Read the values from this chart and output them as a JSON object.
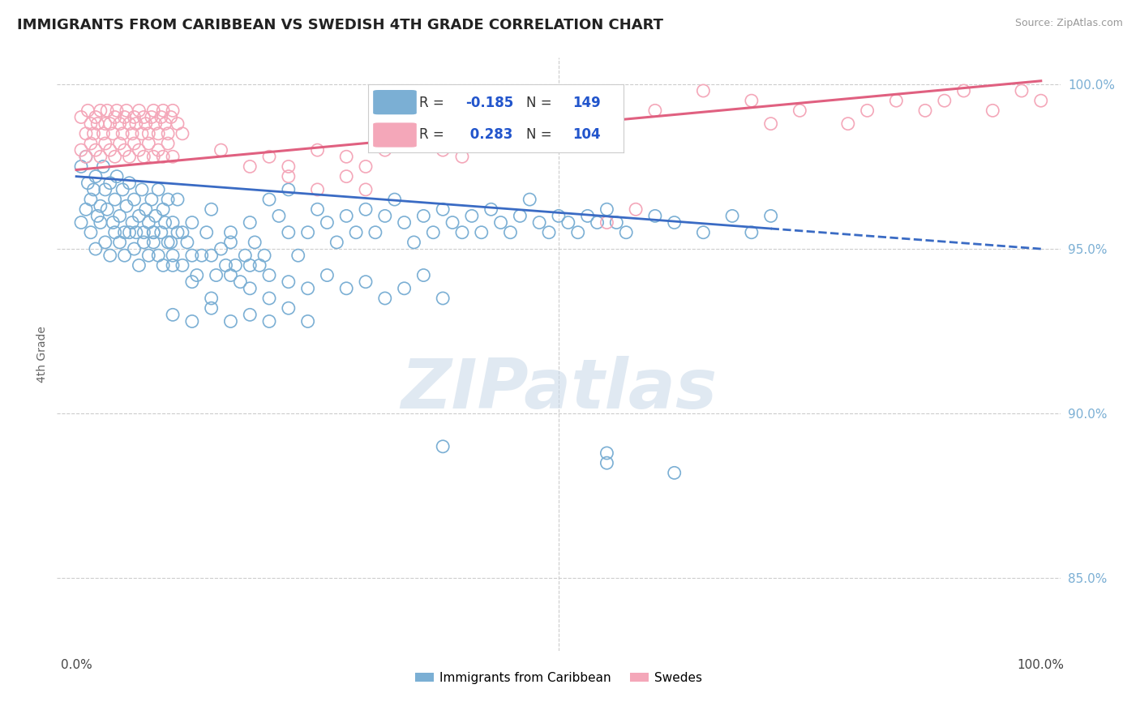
{
  "title": "IMMIGRANTS FROM CARIBBEAN VS SWEDISH 4TH GRADE CORRELATION CHART",
  "source": "Source: ZipAtlas.com",
  "ylabel": "4th Grade",
  "xlim": [
    -0.02,
    1.02
  ],
  "ylim": [
    0.828,
    1.008
  ],
  "x_tick_labels": [
    "0.0%",
    "100.0%"
  ],
  "x_tick_values": [
    0.0,
    1.0
  ],
  "y_tick_labels": [
    "85.0%",
    "90.0%",
    "95.0%",
    "100.0%"
  ],
  "y_tick_values": [
    0.85,
    0.9,
    0.95,
    1.0
  ],
  "color_blue": "#7bafd4",
  "color_pink": "#f4a7b9",
  "color_blue_line": "#3a6bc4",
  "color_pink_line": "#e06080",
  "trendline_blue": [
    [
      0.0,
      0.972
    ],
    [
      1.0,
      0.95
    ]
  ],
  "trendline_blue_solid_end": 0.72,
  "trendline_pink": [
    [
      0.0,
      0.974
    ],
    [
      1.0,
      1.001
    ]
  ],
  "legend_label_1": "Immigrants from Caribbean",
  "legend_label_2": "Swedes",
  "blue_scatter": [
    [
      0.005,
      0.975
    ],
    [
      0.01,
      0.978
    ],
    [
      0.012,
      0.97
    ],
    [
      0.015,
      0.965
    ],
    [
      0.018,
      0.968
    ],
    [
      0.02,
      0.972
    ],
    [
      0.022,
      0.96
    ],
    [
      0.025,
      0.963
    ],
    [
      0.028,
      0.975
    ],
    [
      0.03,
      0.968
    ],
    [
      0.032,
      0.962
    ],
    [
      0.035,
      0.97
    ],
    [
      0.038,
      0.958
    ],
    [
      0.04,
      0.965
    ],
    [
      0.042,
      0.972
    ],
    [
      0.045,
      0.96
    ],
    [
      0.048,
      0.968
    ],
    [
      0.05,
      0.955
    ],
    [
      0.052,
      0.963
    ],
    [
      0.055,
      0.97
    ],
    [
      0.058,
      0.958
    ],
    [
      0.06,
      0.965
    ],
    [
      0.062,
      0.955
    ],
    [
      0.065,
      0.96
    ],
    [
      0.068,
      0.968
    ],
    [
      0.07,
      0.955
    ],
    [
      0.072,
      0.962
    ],
    [
      0.075,
      0.958
    ],
    [
      0.078,
      0.965
    ],
    [
      0.08,
      0.955
    ],
    [
      0.082,
      0.96
    ],
    [
      0.085,
      0.968
    ],
    [
      0.088,
      0.955
    ],
    [
      0.09,
      0.962
    ],
    [
      0.092,
      0.958
    ],
    [
      0.095,
      0.965
    ],
    [
      0.098,
      0.952
    ],
    [
      0.1,
      0.958
    ],
    [
      0.105,
      0.965
    ],
    [
      0.11,
      0.955
    ],
    [
      0.005,
      0.958
    ],
    [
      0.01,
      0.962
    ],
    [
      0.015,
      0.955
    ],
    [
      0.02,
      0.95
    ],
    [
      0.025,
      0.958
    ],
    [
      0.03,
      0.952
    ],
    [
      0.035,
      0.948
    ],
    [
      0.04,
      0.955
    ],
    [
      0.045,
      0.952
    ],
    [
      0.05,
      0.948
    ],
    [
      0.055,
      0.955
    ],
    [
      0.06,
      0.95
    ],
    [
      0.065,
      0.945
    ],
    [
      0.07,
      0.952
    ],
    [
      0.075,
      0.948
    ],
    [
      0.08,
      0.955
    ],
    [
      0.085,
      0.948
    ],
    [
      0.09,
      0.945
    ],
    [
      0.095,
      0.952
    ],
    [
      0.1,
      0.948
    ],
    [
      0.105,
      0.955
    ],
    [
      0.11,
      0.945
    ],
    [
      0.115,
      0.952
    ],
    [
      0.12,
      0.948
    ],
    [
      0.125,
      0.942
    ],
    [
      0.13,
      0.948
    ],
    [
      0.135,
      0.955
    ],
    [
      0.14,
      0.948
    ],
    [
      0.145,
      0.942
    ],
    [
      0.15,
      0.95
    ],
    [
      0.155,
      0.945
    ],
    [
      0.16,
      0.952
    ],
    [
      0.165,
      0.945
    ],
    [
      0.17,
      0.94
    ],
    [
      0.175,
      0.948
    ],
    [
      0.18,
      0.945
    ],
    [
      0.185,
      0.952
    ],
    [
      0.19,
      0.945
    ],
    [
      0.195,
      0.948
    ],
    [
      0.2,
      0.942
    ],
    [
      0.21,
      0.96
    ],
    [
      0.22,
      0.955
    ],
    [
      0.23,
      0.948
    ],
    [
      0.24,
      0.955
    ],
    [
      0.25,
      0.962
    ],
    [
      0.26,
      0.958
    ],
    [
      0.27,
      0.952
    ],
    [
      0.28,
      0.96
    ],
    [
      0.29,
      0.955
    ],
    [
      0.3,
      0.962
    ],
    [
      0.31,
      0.955
    ],
    [
      0.32,
      0.96
    ],
    [
      0.33,
      0.965
    ],
    [
      0.34,
      0.958
    ],
    [
      0.35,
      0.952
    ],
    [
      0.36,
      0.96
    ],
    [
      0.37,
      0.955
    ],
    [
      0.38,
      0.962
    ],
    [
      0.39,
      0.958
    ],
    [
      0.4,
      0.955
    ],
    [
      0.41,
      0.96
    ],
    [
      0.42,
      0.955
    ],
    [
      0.43,
      0.962
    ],
    [
      0.44,
      0.958
    ],
    [
      0.45,
      0.955
    ],
    [
      0.46,
      0.96
    ],
    [
      0.47,
      0.965
    ],
    [
      0.48,
      0.958
    ],
    [
      0.49,
      0.955
    ],
    [
      0.5,
      0.96
    ],
    [
      0.51,
      0.958
    ],
    [
      0.52,
      0.955
    ],
    [
      0.53,
      0.96
    ],
    [
      0.54,
      0.958
    ],
    [
      0.55,
      0.962
    ],
    [
      0.56,
      0.958
    ],
    [
      0.57,
      0.955
    ],
    [
      0.6,
      0.96
    ],
    [
      0.62,
      0.958
    ],
    [
      0.65,
      0.955
    ],
    [
      0.68,
      0.96
    ],
    [
      0.7,
      0.955
    ],
    [
      0.72,
      0.96
    ],
    [
      0.12,
      0.94
    ],
    [
      0.14,
      0.935
    ],
    [
      0.16,
      0.942
    ],
    [
      0.18,
      0.938
    ],
    [
      0.2,
      0.935
    ],
    [
      0.22,
      0.94
    ],
    [
      0.24,
      0.938
    ],
    [
      0.26,
      0.942
    ],
    [
      0.28,
      0.938
    ],
    [
      0.3,
      0.94
    ],
    [
      0.32,
      0.935
    ],
    [
      0.34,
      0.938
    ],
    [
      0.36,
      0.942
    ],
    [
      0.38,
      0.935
    ],
    [
      0.1,
      0.93
    ],
    [
      0.12,
      0.928
    ],
    [
      0.14,
      0.932
    ],
    [
      0.16,
      0.928
    ],
    [
      0.18,
      0.93
    ],
    [
      0.2,
      0.928
    ],
    [
      0.22,
      0.932
    ],
    [
      0.24,
      0.928
    ],
    [
      0.08,
      0.952
    ],
    [
      0.1,
      0.945
    ],
    [
      0.12,
      0.958
    ],
    [
      0.14,
      0.962
    ],
    [
      0.16,
      0.955
    ],
    [
      0.18,
      0.958
    ],
    [
      0.2,
      0.965
    ],
    [
      0.22,
      0.968
    ],
    [
      0.55,
      0.885
    ],
    [
      0.62,
      0.882
    ],
    [
      0.38,
      0.89
    ],
    [
      0.55,
      0.888
    ]
  ],
  "pink_scatter": [
    [
      0.005,
      0.99
    ],
    [
      0.01,
      0.985
    ],
    [
      0.012,
      0.992
    ],
    [
      0.015,
      0.988
    ],
    [
      0.018,
      0.985
    ],
    [
      0.02,
      0.99
    ],
    [
      0.022,
      0.988
    ],
    [
      0.025,
      0.992
    ],
    [
      0.028,
      0.985
    ],
    [
      0.03,
      0.988
    ],
    [
      0.032,
      0.992
    ],
    [
      0.035,
      0.988
    ],
    [
      0.038,
      0.985
    ],
    [
      0.04,
      0.99
    ],
    [
      0.042,
      0.992
    ],
    [
      0.045,
      0.988
    ],
    [
      0.048,
      0.985
    ],
    [
      0.05,
      0.99
    ],
    [
      0.052,
      0.992
    ],
    [
      0.055,
      0.988
    ],
    [
      0.058,
      0.985
    ],
    [
      0.06,
      0.99
    ],
    [
      0.062,
      0.988
    ],
    [
      0.065,
      0.992
    ],
    [
      0.068,
      0.985
    ],
    [
      0.07,
      0.99
    ],
    [
      0.072,
      0.988
    ],
    [
      0.075,
      0.985
    ],
    [
      0.078,
      0.99
    ],
    [
      0.08,
      0.992
    ],
    [
      0.082,
      0.988
    ],
    [
      0.085,
      0.985
    ],
    [
      0.088,
      0.99
    ],
    [
      0.09,
      0.992
    ],
    [
      0.092,
      0.988
    ],
    [
      0.095,
      0.985
    ],
    [
      0.098,
      0.99
    ],
    [
      0.1,
      0.992
    ],
    [
      0.105,
      0.988
    ],
    [
      0.11,
      0.985
    ],
    [
      0.005,
      0.98
    ],
    [
      0.01,
      0.978
    ],
    [
      0.015,
      0.982
    ],
    [
      0.02,
      0.98
    ],
    [
      0.025,
      0.978
    ],
    [
      0.03,
      0.982
    ],
    [
      0.035,
      0.98
    ],
    [
      0.04,
      0.978
    ],
    [
      0.045,
      0.982
    ],
    [
      0.05,
      0.98
    ],
    [
      0.055,
      0.978
    ],
    [
      0.06,
      0.982
    ],
    [
      0.065,
      0.98
    ],
    [
      0.07,
      0.978
    ],
    [
      0.075,
      0.982
    ],
    [
      0.08,
      0.978
    ],
    [
      0.085,
      0.98
    ],
    [
      0.09,
      0.978
    ],
    [
      0.095,
      0.982
    ],
    [
      0.1,
      0.978
    ],
    [
      0.15,
      0.98
    ],
    [
      0.18,
      0.975
    ],
    [
      0.2,
      0.978
    ],
    [
      0.22,
      0.975
    ],
    [
      0.25,
      0.98
    ],
    [
      0.28,
      0.978
    ],
    [
      0.3,
      0.975
    ],
    [
      0.32,
      0.98
    ],
    [
      0.35,
      0.985
    ],
    [
      0.38,
      0.98
    ],
    [
      0.4,
      0.978
    ],
    [
      0.42,
      0.982
    ],
    [
      0.45,
      0.985
    ],
    [
      0.22,
      0.972
    ],
    [
      0.25,
      0.968
    ],
    [
      0.28,
      0.972
    ],
    [
      0.3,
      0.968
    ],
    [
      0.5,
      0.992
    ],
    [
      0.55,
      0.99
    ],
    [
      0.6,
      0.992
    ],
    [
      0.65,
      0.998
    ],
    [
      0.7,
      0.995
    ],
    [
      0.72,
      0.988
    ],
    [
      0.75,
      0.992
    ],
    [
      0.8,
      0.988
    ],
    [
      0.82,
      0.992
    ],
    [
      0.85,
      0.995
    ],
    [
      0.88,
      0.992
    ],
    [
      0.9,
      0.995
    ],
    [
      0.92,
      0.998
    ],
    [
      0.95,
      0.992
    ],
    [
      0.98,
      0.998
    ],
    [
      1.0,
      0.995
    ],
    [
      0.55,
      0.958
    ],
    [
      0.58,
      0.962
    ]
  ]
}
